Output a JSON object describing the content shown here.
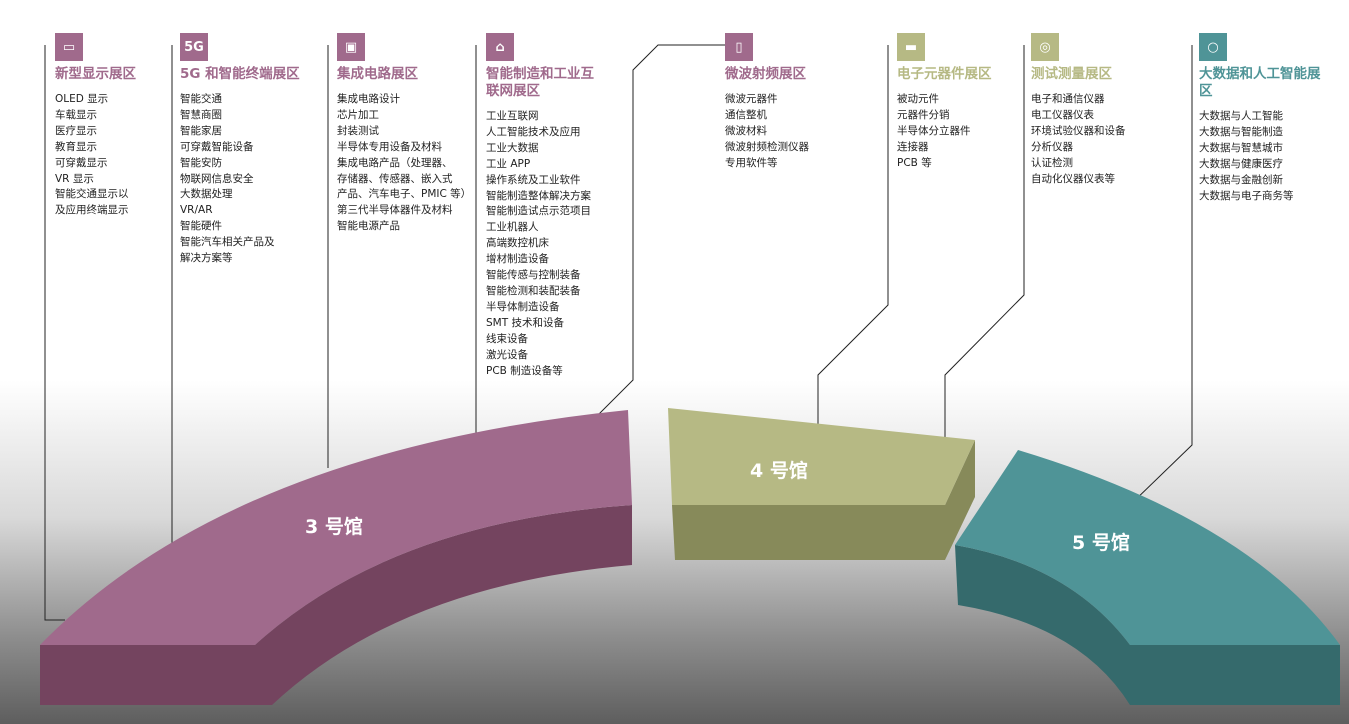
{
  "colors": {
    "purple": "#a06a8c",
    "purple_dark": "#74445f",
    "olive": "#b6b984",
    "olive_dark": "#878a5a",
    "teal": "#4f9497",
    "teal_dark": "#356a6c"
  },
  "halls": [
    {
      "label": "3 号馆"
    },
    {
      "label": "4 号馆"
    },
    {
      "label": "5 号馆"
    }
  ],
  "zones": [
    {
      "icon": "display-icon",
      "title": "新型显示展区",
      "items": [
        "OLED 显示",
        "车载显示",
        "医疗显示",
        "教育显示",
        "可穿戴显示",
        "VR 显示",
        "智能交通显示以",
        "及应用终端显示"
      ]
    },
    {
      "icon": "5g-icon",
      "title": "5G 和智能终端展区",
      "items": [
        "智能交通",
        "智慧商圈",
        "智能家居",
        "可穿戴智能设备",
        "智能安防",
        "物联网信息安全",
        "大数据处理",
        "VR/AR",
        "智能硬件",
        "智能汽车相关产品及",
        "解决方案等"
      ]
    },
    {
      "icon": "chip-icon",
      "title": "集成电路展区",
      "items": [
        "集成电路设计",
        "芯片加工",
        "封装测试",
        "半导体专用设备及材料",
        "集成电路产品（处理器、",
        "存储器、传感器、嵌入式",
        "产品、汽车电子、PMIC 等）",
        "第三代半导体器件及材料",
        "智能电源产品"
      ]
    },
    {
      "icon": "factory-icon",
      "title": "智能制造和工业互联网展区",
      "items": [
        "工业互联网",
        "人工智能技术及应用",
        "工业大数据",
        "工业 APP",
        "操作系统及工业软件",
        "智能制造整体解决方案",
        "智能制造试点示范项目",
        "工业机器人",
        "高端数控机床",
        "增材制造设备",
        "智能传感与控制装备",
        "智能检测和装配装备",
        "半导体制造设备",
        "SMT 技术和设备",
        "线束设备",
        "激光设备",
        "PCB 制造设备等"
      ]
    },
    {
      "icon": "phone-icon",
      "title": "微波射频展区",
      "items": [
        "微波元器件",
        "通信整机",
        "微波材料",
        "微波射频检测仪器",
        "专用软件等"
      ]
    },
    {
      "icon": "projector-icon",
      "title": "电子元器件展区",
      "items": [
        "被动元件",
        "元器件分销",
        "半导体分立器件",
        "连接器",
        "PCB 等"
      ]
    },
    {
      "icon": "gauge-icon",
      "title": "测试测量展区",
      "items": [
        "电子和通信仪器",
        "电工仪器仪表",
        "环境试验仪器和设备",
        "分析仪器",
        "认证检测",
        "自动化仪器仪表等"
      ]
    },
    {
      "icon": "cycle-icon",
      "title": "大数据和人工智能展区",
      "items": [
        "大数据与人工智能",
        "大数据与智能制造",
        "大数据与智慧城市",
        "大数据与健康医疗",
        "大数据与金融创新",
        "大数据与电子商务等"
      ]
    }
  ]
}
